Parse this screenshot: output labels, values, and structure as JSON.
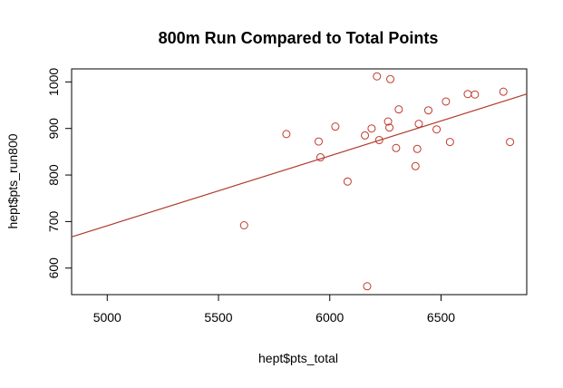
{
  "chart_data": {
    "type": "scatter",
    "title": "800m Run Compared to Total Points",
    "xlabel": "hept$pts_total",
    "ylabel": "hept$pts_run800",
    "xlim": [
      4840,
      6885
    ],
    "ylim": [
      543,
      1028
    ],
    "x_ticks": [
      5000,
      5500,
      6000,
      6500
    ],
    "y_ticks": [
      600,
      700,
      800,
      900,
      1000
    ],
    "grid": false,
    "point_color": "#c0392b",
    "line_color": "#b03a2e",
    "regression_line": {
      "x": [
        4840,
        6885
      ],
      "y": [
        667,
        974
      ]
    },
    "points": [
      {
        "x": 5615,
        "y": 692
      },
      {
        "x": 5805,
        "y": 888
      },
      {
        "x": 5950,
        "y": 872
      },
      {
        "x": 5958,
        "y": 838
      },
      {
        "x": 6025,
        "y": 904
      },
      {
        "x": 6080,
        "y": 786
      },
      {
        "x": 6158,
        "y": 885
      },
      {
        "x": 6168,
        "y": 561
      },
      {
        "x": 6188,
        "y": 900
      },
      {
        "x": 6212,
        "y": 1012
      },
      {
        "x": 6222,
        "y": 875
      },
      {
        "x": 6262,
        "y": 915
      },
      {
        "x": 6268,
        "y": 902
      },
      {
        "x": 6272,
        "y": 1006
      },
      {
        "x": 6298,
        "y": 858
      },
      {
        "x": 6310,
        "y": 941
      },
      {
        "x": 6385,
        "y": 819
      },
      {
        "x": 6393,
        "y": 856
      },
      {
        "x": 6400,
        "y": 910
      },
      {
        "x": 6443,
        "y": 939
      },
      {
        "x": 6480,
        "y": 898
      },
      {
        "x": 6522,
        "y": 958
      },
      {
        "x": 6540,
        "y": 871
      },
      {
        "x": 6620,
        "y": 974
      },
      {
        "x": 6652,
        "y": 973
      },
      {
        "x": 6780,
        "y": 979
      },
      {
        "x": 6810,
        "y": 871
      }
    ]
  }
}
